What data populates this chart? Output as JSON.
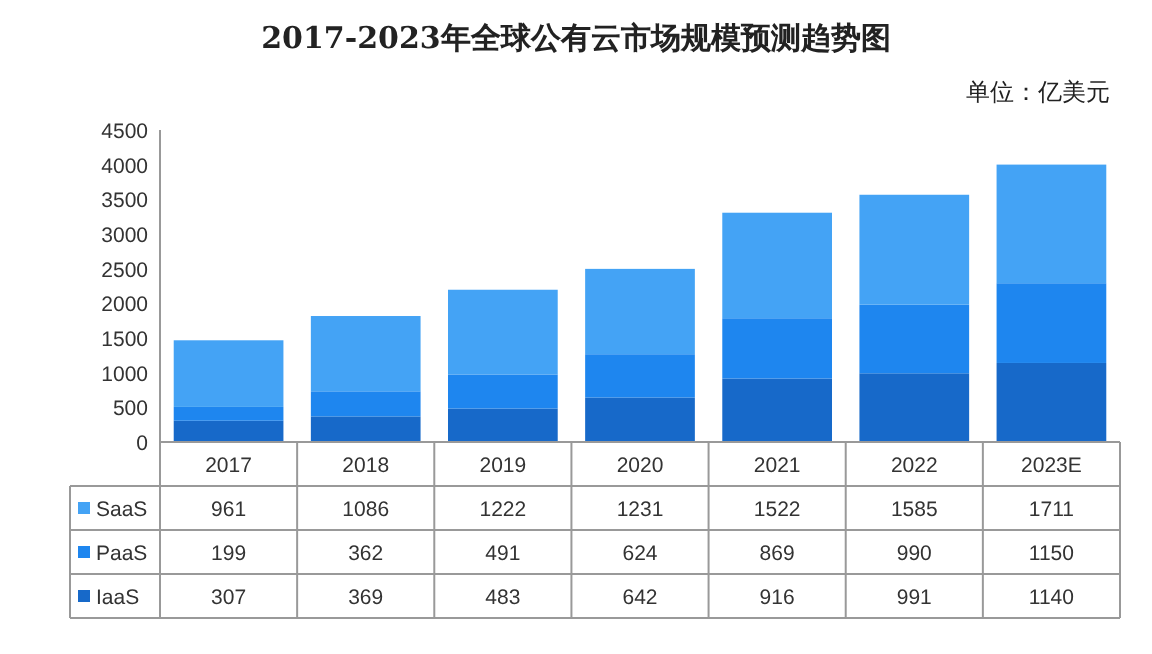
{
  "chart_data": {
    "type": "bar",
    "title": "2017-2023年全球公有云市场规模预测趋势图",
    "subtitle": "单位：亿美元",
    "categories": [
      "2017",
      "2018",
      "2019",
      "2020",
      "2021",
      "2022",
      "2023E"
    ],
    "series": [
      {
        "name": "IaaS",
        "color": "#1769c9",
        "values": [
          307,
          369,
          483,
          642,
          916,
          991,
          1140
        ]
      },
      {
        "name": "PaaS",
        "color": "#1e86ef",
        "values": [
          199,
          362,
          491,
          624,
          869,
          990,
          1150
        ]
      },
      {
        "name": "SaaS",
        "color": "#44a3f5",
        "values": [
          961,
          1086,
          1222,
          1231,
          1522,
          1585,
          1711
        ]
      }
    ],
    "stacked": true,
    "ylim": [
      0,
      4500
    ],
    "yticks": [
      0,
      500,
      1000,
      1500,
      2000,
      2500,
      3000,
      3500,
      4000,
      4500
    ],
    "data_labels": true,
    "legend": "bottom",
    "grid": false
  }
}
